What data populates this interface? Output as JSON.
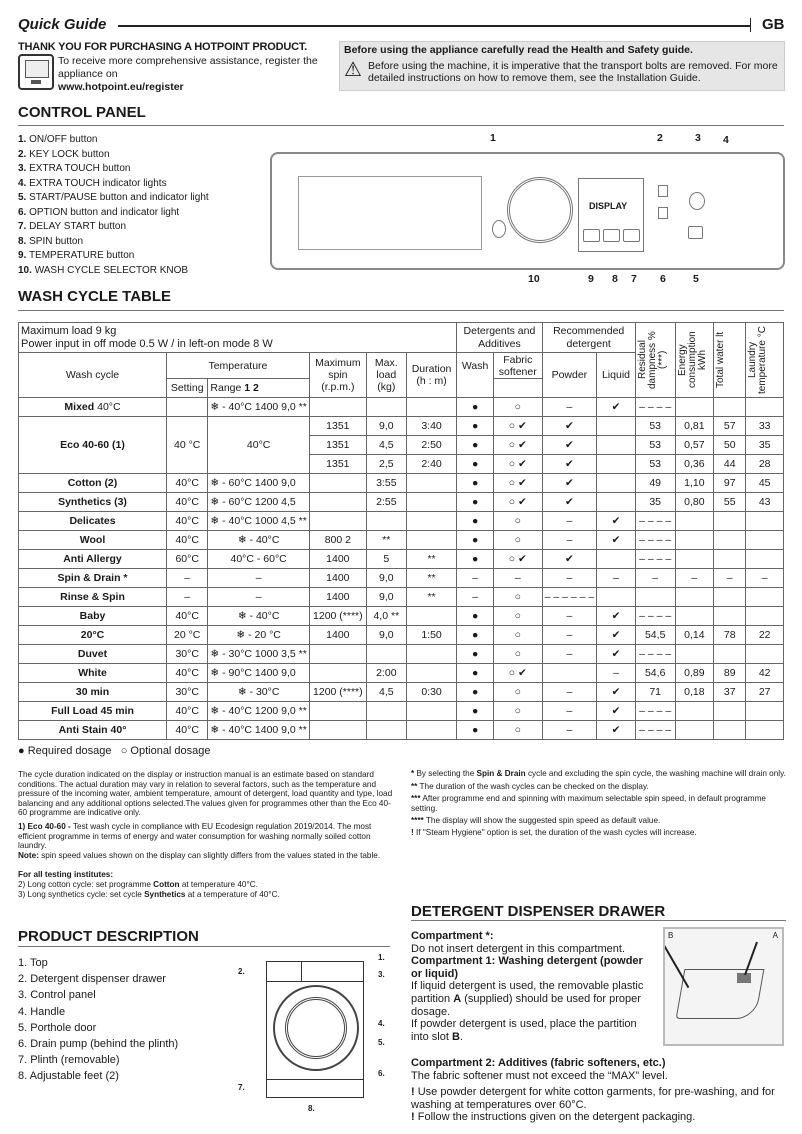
{
  "header": {
    "title": "Quick Guide",
    "lang": "GB"
  },
  "intro": {
    "thanks": "THANK YOU FOR PURCHASING A HOTPOINT PRODUCT.",
    "register_text": "To receive more comprehensive assistance, register the appliance on",
    "register_url": "www.hotpoint.eu/register"
  },
  "safety": {
    "title": "Before using the appliance carefully read the Health and Safety guide.",
    "body": "Before using the machine, it is imperative that the transport bolts are removed. For more detailed instructions on how to remove them, see the Installation Guide."
  },
  "control_panel": {
    "heading": "CONTROL PANEL",
    "display_label": "DISPLAY",
    "items": [
      {
        "n": "1.",
        "label": "ON/OFF button"
      },
      {
        "n": "2.",
        "label": "KEY LOCK button"
      },
      {
        "n": "3.",
        "label": "EXTRA TOUCH button"
      },
      {
        "n": "4.",
        "label": "EXTRA TOUCH indicator lights"
      },
      {
        "n": "5.",
        "label": "START/PAUSE button and indicator light"
      },
      {
        "n": "6.",
        "label": "OPTION button and indicator light"
      },
      {
        "n": "7.",
        "label": "DELAY START button"
      },
      {
        "n": "8.",
        "label": "SPIN button"
      },
      {
        "n": "9.",
        "label": "TEMPERATURE button"
      },
      {
        "n": "10.",
        "label": "WASH CYCLE SELECTOR KNOB"
      }
    ],
    "callouts": [
      "1",
      "2",
      "3",
      "4",
      "5",
      "6",
      "7",
      "8",
      "9",
      "10"
    ]
  },
  "wash_table": {
    "heading": "WASH CYCLE TABLE",
    "max_load": "Maximum load  9 kg",
    "power": "Power input in off  mode 0.5 W / in left-on mode 8 W",
    "headers": {
      "wash_cycle": "Wash cycle",
      "temperature": "Temperature",
      "setting": "Setting",
      "range": "Range",
      "range_nums": "1 2",
      "max_spin": "Maximum spin (r.p.m.)",
      "max_load": "Max. load (kg)",
      "duration": "Duration (h : m)",
      "detergents": "Detergents and Additives",
      "wash": "Wash",
      "softener": "Fabric softener",
      "recommended": "Recommended detergent",
      "powder": "Powder",
      "liquid": "Liquid",
      "residual": "Residual dampness % (***)",
      "energy": "Energy consumption kWh",
      "water": "Total water lt",
      "laundry_temp": "Laundry temperature °C"
    },
    "rows": [
      {
        "name": "Mixed",
        "suffix": " 40°C",
        "cells": [
          "",
          "❄ - 40°C 1400 9,0 **",
          "",
          "",
          "",
          "●",
          "○",
          "–",
          "✔",
          "– – – –",
          "",
          "",
          ""
        ]
      },
      {
        "name": "Eco 40-60 (1)",
        "suffix": "",
        "span": 3,
        "cells": [
          "40 °C",
          "40°C",
          "1351",
          "9,0",
          "3:40",
          "●",
          "○  ✔",
          "✔",
          "",
          "53",
          "0,81",
          "57",
          "33"
        ]
      },
      {
        "cont": true,
        "cells": [
          "1351",
          "4,5",
          "2:50",
          "●",
          "○  ✔",
          "✔",
          "",
          "53",
          "0,57",
          "50",
          "35"
        ]
      },
      {
        "cont": true,
        "cells": [
          "1351",
          "2,5",
          "2:40",
          "●",
          "○  ✔",
          "✔",
          "",
          "53",
          "0,36",
          "44",
          "28"
        ]
      },
      {
        "name": "Cotton (2)",
        "suffix": "",
        "cells": [
          "40°C",
          "❄ - 60°C 1400 9,0",
          "",
          "3:55",
          "",
          "●",
          "○  ✔",
          "✔",
          "",
          "49",
          "1,10",
          "97",
          "45"
        ]
      },
      {
        "name": "Synthetics (3)",
        "suffix": "",
        "cells": [
          "40°C",
          "❄ - 60°C 1200 4,5",
          "",
          "2:55",
          "",
          "●",
          "○  ✔",
          "✔",
          "",
          "35",
          "0,80",
          "55",
          "43"
        ]
      },
      {
        "name": "Delicates",
        "suffix": "",
        "cells": [
          "40°C",
          "❄ - 40°C 1000 4,5 **",
          "",
          "",
          "",
          "●",
          "○",
          "–",
          "✔",
          "– – – –",
          "",
          "",
          ""
        ]
      },
      {
        "name": "Wool",
        "suffix": "",
        "cells": [
          "40°C",
          "❄ - 40°C",
          "800 2",
          "**",
          "",
          "●",
          "○",
          "–",
          "✔",
          "– – – –",
          "",
          "",
          ""
        ]
      },
      {
        "name": "Anti Allergy",
        "suffix": "",
        "cells": [
          "60°C",
          "40°C - 60°C",
          "1400",
          "5",
          "**",
          "●",
          "○  ✔",
          "✔",
          "",
          "– – – –",
          "",
          "",
          ""
        ]
      },
      {
        "name": "Spin & Drain *",
        "suffix": "",
        "cells": [
          "–",
          "–",
          "1400",
          "9,0",
          "**",
          "–",
          "–",
          "–",
          "–",
          "–",
          "–",
          "–",
          "–"
        ]
      },
      {
        "name": "Rinse & Spin",
        "suffix": "",
        "cells": [
          "–",
          "–",
          "1400",
          "9,0",
          "**",
          "–",
          "○",
          "– – – – – –",
          "",
          "",
          "",
          "",
          ""
        ]
      },
      {
        "name": "Baby",
        "suffix": "",
        "cells": [
          "40°C",
          "❄ - 40°C",
          "1200 (****)",
          "4,0 **",
          "",
          "●",
          "○",
          "–",
          "✔",
          "– – – –",
          "",
          "",
          ""
        ]
      },
      {
        "name": "20°C",
        "suffix": "",
        "cells": [
          "20 °C",
          "❄ - 20 °C",
          "1400",
          "9,0",
          "1:50",
          "●",
          "○",
          "–",
          "✔",
          "54,5",
          "0,14",
          "78",
          "22"
        ]
      },
      {
        "name": "Duvet",
        "suffix": "",
        "cells": [
          "30°C",
          "❄ - 30°C 1000 3,5 **",
          "",
          "",
          "",
          "●",
          "○",
          "–",
          "✔",
          "– – – –",
          "",
          "",
          ""
        ]
      },
      {
        "name": "White",
        "suffix": "",
        "cells": [
          "40°C",
          "❄ - 90°C 1400 9,0",
          "",
          "2:00",
          "",
          "●",
          "○  ✔",
          "",
          "–",
          "54,6",
          "0,89",
          "89",
          "42"
        ]
      },
      {
        "name": "30 min",
        "suffix": "",
        "cells": [
          "30°C",
          "❄ - 30°C",
          "1200 (****)",
          "4,5",
          "0:30",
          "●",
          "○",
          "–",
          "✔",
          "71",
          "0,18",
          "37",
          "27"
        ]
      },
      {
        "name": "Full Load 45 min",
        "suffix": "",
        "cells": [
          "40°C",
          "❄ - 40°C 1200 9,0 **",
          "",
          "",
          "",
          "●",
          "○",
          "–",
          "✔",
          "– – – –",
          "",
          "",
          ""
        ]
      },
      {
        "name": "Anti Stain 40°",
        "suffix": "",
        "cells": [
          "40°C",
          "❄ - 40°C 1400 9,0 **",
          "",
          "",
          "",
          "●",
          "○",
          "–",
          "✔",
          "– – – –",
          "",
          "",
          ""
        ]
      }
    ],
    "legend_required": "Required dosage",
    "legend_optional": "Optional dosage"
  },
  "notes_left": {
    "p1": "The cycle duration indicated on the display or instruction manual is an estimate based on standard conditions. The actual duration may vary in relation to several factors, such as the temperature and pressure of the incoming water, ambient temperature, amount of detergent, load quantity and type, load balancing and any additional options selected.The values given for programmes other than the Eco 40-60 programme are indicative only.",
    "eco_bold": "1) Eco 40-60 -",
    "eco_text": " Test wash cycle in compliance with EU Ecodesign regulation 2019/2014. The most efficient programme in terms of energy and water consumption for washing normally soiled cotton laundry.",
    "note_bold": "Note:",
    "note_text": " spin speed values shown on the display can slightly differs from the values stated in the table.",
    "institutes": "For all testing institutes:",
    "i2a": "2)  Long cotton cycle: set programme ",
    "i2b": "Cotton",
    "i2c": " at temperature 40°C.",
    "i3a": "3)  Long synthetics cycle: set cycle ",
    "i3b": "Synthetics",
    "i3c": " at a temperature of 40°C."
  },
  "notes_right": {
    "n1a": "By selecting the ",
    "n1b": "Spin & Drain",
    "n1c": " cycle and excluding the spin cycle, the washing machine will drain only.",
    "n2": "The duration of the wash cycles can be checked on the display.",
    "n3": "After programme end and spinning with maximum selectable spin speed, in default programme setting.",
    "n4": "The display will show the suggested spin speed as default value.",
    "n5": "If \"Steam Hygiene\" option is set, the duration of the wash cycles will increase.",
    "m1": "*",
    "m2": "**",
    "m3": "***",
    "m4": "****",
    "m5": "!"
  },
  "product": {
    "heading": "PRODUCT DESCRIPTION",
    "items": [
      "1. Top",
      "2. Detergent dispenser drawer",
      "3. Control panel",
      "4. Handle",
      "5. Porthole door",
      "6. Drain pump (behind the plinth)",
      "7. Plinth (removable)",
      "8. Adjustable feet (2)"
    ],
    "callouts": [
      "1.",
      "2.",
      "3.",
      "4.",
      "5.",
      "6.",
      "7.",
      "8."
    ]
  },
  "drawer": {
    "heading": "DETERGENT DISPENSER DRAWER",
    "c0_title": "Compartment *:",
    "c0_text": "Do not insert detergent in this compartment.",
    "c1_title": "Compartment 1: Washing detergent (powder or liquid)",
    "c1_a": "If liquid detergent is used, the removable plastic partition ",
    "c1_b": "A",
    "c1_c": " (supplied) should be used for proper dosage.",
    "c1_d": "If powder detergent is used, place the partition into slot ",
    "c1_e": "B",
    "c1_f": ".",
    "c2_title": "Compartment 2: Additives (fabric softeners, etc.)",
    "c2_text": "The fabric softener must not exceed the “MAX” level.",
    "w1": "Use powder detergent for white cotton garments, for pre-washing, and for washing at temperatures over 60°C.",
    "w2": "Follow the instructions given on the detergent packaging.",
    "mark": "!",
    "label_a": "A",
    "label_b": "B"
  }
}
